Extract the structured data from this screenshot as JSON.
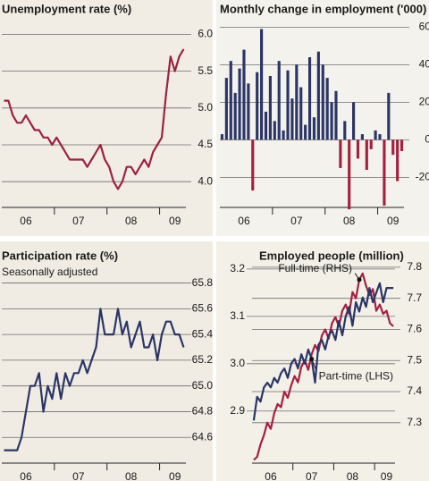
{
  "chart_data": [
    {
      "type": "line",
      "title": "Unemployment rate (%)",
      "categories": [
        null,
        null,
        null,
        null,
        null,
        "06",
        null,
        null,
        null,
        null,
        null,
        null,
        null,
        null,
        null,
        null,
        null,
        "07",
        null,
        null,
        null,
        null,
        null,
        null,
        null,
        null,
        null,
        null,
        null,
        "08",
        null,
        null,
        null,
        null,
        null,
        null,
        null,
        null,
        null,
        "09",
        null,
        null
      ],
      "series": [
        {
          "name": "Unemployment rate",
          "color": "#9b2340",
          "values": [
            5.1,
            5.1,
            4.9,
            4.8,
            4.8,
            4.9,
            4.8,
            4.7,
            4.7,
            4.6,
            4.6,
            4.5,
            4.6,
            4.5,
            4.4,
            4.3,
            4.3,
            4.3,
            4.3,
            4.2,
            4.3,
            4.4,
            4.5,
            4.3,
            4.2,
            4.0,
            3.9,
            4.0,
            4.2,
            4.2,
            4.1,
            4.2,
            4.3,
            4.2,
            4.4,
            4.5,
            4.6,
            5.2,
            5.7,
            5.5,
            5.7,
            5.8
          ]
        }
      ],
      "ylim": [
        3.65,
        6.2
      ],
      "yticks": [
        {
          "value": 4.0,
          "label": "4.0"
        },
        4.5,
        {
          "value": 5.0,
          "label": "5.0"
        },
        5.5,
        {
          "value": 6.0,
          "label": "6.0"
        }
      ],
      "grid": true
    },
    {
      "type": "bar",
      "title": "Monthly change in employment ('000)",
      "categories": [
        null,
        null,
        null,
        null,
        null,
        "06",
        null,
        null,
        null,
        null,
        null,
        null,
        null,
        null,
        null,
        null,
        null,
        "07",
        null,
        null,
        null,
        null,
        null,
        null,
        null,
        null,
        null,
        null,
        null,
        "08",
        null,
        null,
        null,
        null,
        null,
        null,
        null,
        null,
        null,
        "09",
        null,
        null
      ],
      "values": [
        3,
        33,
        42,
        25,
        38,
        48,
        30,
        -27,
        36,
        59,
        15,
        34,
        10,
        42,
        5,
        37,
        22,
        40,
        28,
        8,
        44,
        12,
        47,
        40,
        33,
        20,
        26,
        -15,
        10,
        -37,
        20,
        -10,
        3,
        -16,
        -5,
        5,
        3,
        -35,
        25,
        -8,
        -22,
        -6
      ],
      "color": "#2b3566",
      "negative_color": "#a3213f",
      "ylim": [
        -36,
        64
      ],
      "yticks": [
        -20,
        0,
        20,
        40,
        60
      ],
      "grid": true
    },
    {
      "type": "line",
      "title": "Participation rate (%)",
      "subtitle": "Seasonally adjusted",
      "categories": [
        null,
        null,
        null,
        null,
        null,
        "06",
        null,
        null,
        null,
        null,
        null,
        null,
        null,
        null,
        null,
        null,
        null,
        "07",
        null,
        null,
        null,
        null,
        null,
        null,
        null,
        null,
        null,
        null,
        null,
        "08",
        null,
        null,
        null,
        null,
        null,
        null,
        null,
        null,
        null,
        "09",
        null,
        null
      ],
      "series": [
        {
          "name": "Participation rate",
          "color": "#2b3566",
          "values": [
            64.5,
            64.5,
            64.5,
            64.5,
            64.6,
            64.8,
            65.0,
            65.0,
            65.1,
            64.8,
            65.0,
            64.9,
            65.1,
            64.9,
            65.1,
            65.0,
            65.1,
            65.1,
            65.2,
            65.1,
            65.2,
            65.3,
            65.6,
            65.4,
            65.4,
            65.4,
            65.6,
            65.4,
            65.5,
            65.3,
            65.4,
            65.5,
            65.3,
            65.3,
            65.4,
            65.2,
            65.4,
            65.5,
            65.5,
            65.4,
            65.4,
            65.3
          ]
        }
      ],
      "ylim": [
        64.4,
        65.95
      ],
      "yticks": [
        64.6,
        64.8,
        {
          "value": 65.0,
          "label": "65.0"
        },
        65.2,
        65.4,
        65.6,
        65.8
      ],
      "grid": true
    },
    {
      "type": "line",
      "title": "Employed people (million)",
      "categories": [
        null,
        null,
        null,
        null,
        null,
        "06",
        null,
        null,
        null,
        null,
        null,
        null,
        null,
        null,
        null,
        null,
        null,
        "07",
        null,
        null,
        null,
        null,
        null,
        null,
        null,
        null,
        null,
        null,
        null,
        "08",
        null,
        null,
        null,
        null,
        null,
        null,
        null,
        null,
        null,
        "09",
        null,
        null
      ],
      "series": [
        {
          "name": "Full-time (RHS)",
          "color": "#a3213f",
          "axis": "y2",
          "values": [
            7.18,
            7.19,
            7.23,
            7.26,
            7.3,
            7.28,
            7.33,
            7.36,
            7.35,
            7.4,
            7.38,
            7.42,
            7.45,
            7.43,
            7.48,
            7.5,
            7.47,
            7.52,
            7.55,
            7.53,
            7.58,
            7.6,
            7.57,
            7.62,
            7.64,
            7.61,
            7.66,
            7.68,
            7.65,
            7.72,
            7.7,
            7.76,
            7.78,
            7.74,
            7.71,
            7.73,
            7.66,
            7.68,
            7.65,
            7.66,
            7.62,
            7.61
          ]
        },
        {
          "name": "Part-time (LHS)",
          "color": "#2b3566",
          "values": [
            2.88,
            2.93,
            2.92,
            2.95,
            2.96,
            2.95,
            2.97,
            2.96,
            2.98,
            2.99,
            2.97,
            3.0,
            3.01,
            2.99,
            3.02,
            3.0,
            3.03,
            3.01,
            2.96,
            3.04,
            3.05,
            3.03,
            3.06,
            3.07,
            3.05,
            3.09,
            3.06,
            3.1,
            3.12,
            3.08,
            3.13,
            3.11,
            3.14,
            3.12,
            3.16,
            3.13,
            3.15,
            3.17,
            3.13,
            3.16,
            3.16,
            3.16
          ]
        }
      ],
      "ylim": [
        2.79,
        3.23
      ],
      "yticks": [
        2.9,
        {
          "value": 3.0,
          "label": "3.0"
        },
        3.1,
        3.2
      ],
      "y2lim": [
        7.17,
        7.84
      ],
      "y2ticks": [
        7.3,
        7.4,
        7.5,
        7.6,
        7.7,
        7.8
      ],
      "grid": true
    }
  ]
}
